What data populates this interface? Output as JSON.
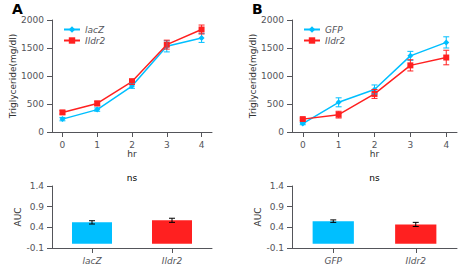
{
  "chart_data": [
    {
      "type": "line",
      "title": "A",
      "xlabel": "hr",
      "ylabel": "Triglyceride(mg/dl)",
      "x": [
        0,
        1,
        2,
        3,
        4
      ],
      "xlim": [
        -0.3,
        4.3
      ],
      "xticks": [
        0,
        1,
        2,
        3,
        4
      ],
      "ylim": [
        0,
        2000
      ],
      "yticks": [
        0,
        500,
        1000,
        1500,
        2000
      ],
      "grid": false,
      "legend": "upper left",
      "series": [
        {
          "name": "lacZ",
          "color": "#00BFFF",
          "marker": "diamond",
          "values": [
            230,
            400,
            820,
            1530,
            1680
          ],
          "errors": [
            30,
            30,
            40,
            100,
            80
          ]
        },
        {
          "name": "Ildr2",
          "color": "#FF2020",
          "marker": "square",
          "values": [
            350,
            510,
            900,
            1560,
            1830
          ],
          "errors": [
            30,
            40,
            50,
            80,
            80
          ]
        }
      ]
    },
    {
      "type": "bar",
      "annotation": "ns",
      "ylabel": "AUC",
      "categories": [
        "lacZ",
        "Ildr2"
      ],
      "values": [
        0.52,
        0.57
      ],
      "errors": [
        0.04,
        0.05
      ],
      "colors": [
        "#00BFFF",
        "#FF2020"
      ],
      "ylim": [
        -0.1,
        1.4
      ],
      "yticks": [
        -0.1,
        0.4,
        0.9,
        1.4
      ],
      "grid": false
    },
    {
      "type": "line",
      "title": "B",
      "xlabel": "hr",
      "ylabel": "Triglyceride(mg/dl)",
      "x": [
        0,
        1,
        2,
        3,
        4
      ],
      "xlim": [
        -0.3,
        4.3
      ],
      "xticks": [
        0,
        1,
        2,
        3,
        4
      ],
      "ylim": [
        0,
        2000
      ],
      "yticks": [
        0,
        500,
        1000,
        1500,
        2000
      ],
      "grid": false,
      "legend": "upper left",
      "series": [
        {
          "name": "GFP",
          "color": "#00BFFF",
          "marker": "diamond",
          "values": [
            150,
            530,
            760,
            1360,
            1600
          ],
          "errors": [
            20,
            80,
            80,
            80,
            100
          ]
        },
        {
          "name": "Ildr2",
          "color": "#FF2020",
          "marker": "square",
          "values": [
            230,
            310,
            680,
            1190,
            1330
          ],
          "errors": [
            20,
            60,
            80,
            100,
            130
          ]
        }
      ]
    },
    {
      "type": "bar",
      "annotation": "ns",
      "ylabel": "AUC",
      "categories": [
        "GFP",
        "Ildr2"
      ],
      "values": [
        0.55,
        0.47
      ],
      "errors": [
        0.03,
        0.05
      ],
      "colors": [
        "#00BFFF",
        "#FF2020"
      ],
      "ylim": [
        -0.1,
        1.4
      ],
      "yticks": [
        -0.1,
        0.4,
        0.9,
        1.4
      ],
      "grid": false
    }
  ]
}
